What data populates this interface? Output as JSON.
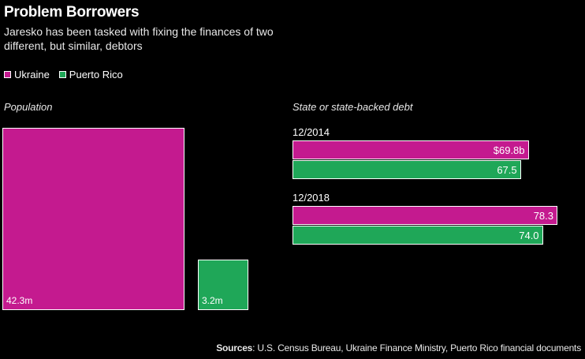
{
  "title": "Problem Borrowers",
  "subtitle": "Jaresko has been tasked with fixing the finances of two different, but similar, debtors",
  "colors": {
    "ukraine": "#c41a8f",
    "puerto_rico": "#1fa758"
  },
  "legend": [
    {
      "name": "Ukraine",
      "color": "#c41a8f"
    },
    {
      "name": "Puerto Rico",
      "color": "#1fa758"
    }
  ],
  "chart_data": [
    {
      "type": "area",
      "title": "Population",
      "series": [
        {
          "name": "Ukraine",
          "value": 42.3,
          "label": "42.3m"
        },
        {
          "name": "Puerto Rico",
          "value": 3.2,
          "label": "3.2m"
        }
      ]
    },
    {
      "type": "bar",
      "title": "State or state-backed debt",
      "categories": [
        "12/2014",
        "12/2018"
      ],
      "series": [
        {
          "name": "Ukraine",
          "values": [
            69.8,
            78.3
          ],
          "labels": [
            "$69.8b",
            "78.3"
          ]
        },
        {
          "name": "Puerto Rico",
          "values": [
            67.5,
            74.0
          ],
          "labels": [
            "67.5",
            "74.0"
          ]
        }
      ],
      "xlim": [
        0,
        78.3
      ]
    }
  ],
  "sources": {
    "label": "Sources",
    "text": ": U.S. Census Bureau, Ukraine Finance Ministry, Puerto Rico financial documents"
  }
}
